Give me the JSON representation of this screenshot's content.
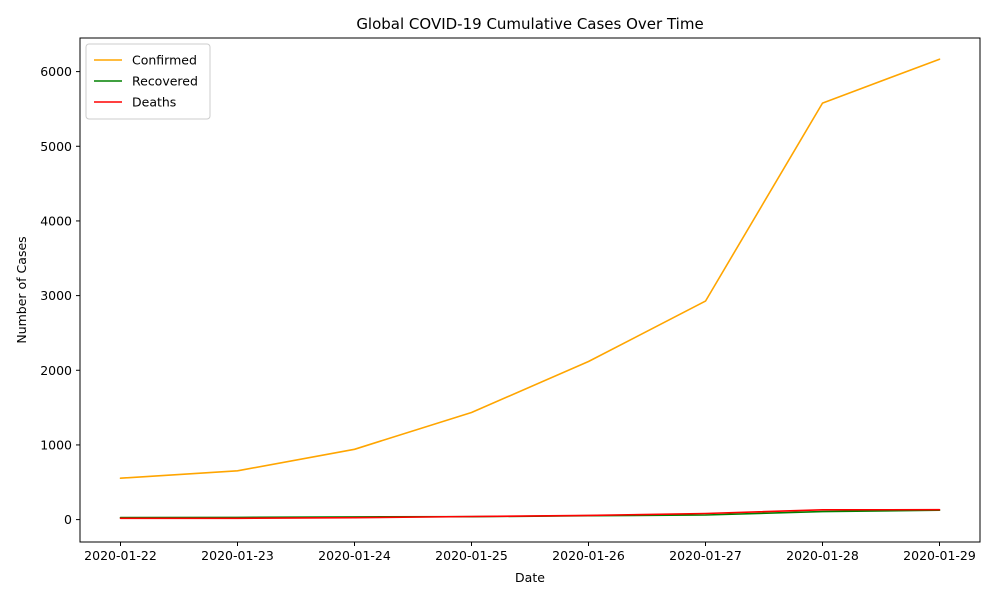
{
  "chart_data": {
    "type": "line",
    "title": "Global COVID-19 Cumulative Cases Over Time",
    "xlabel": "Date",
    "ylabel": "Number of Cases",
    "x": [
      "2020-01-22",
      "2020-01-23",
      "2020-01-24",
      "2020-01-25",
      "2020-01-26",
      "2020-01-27",
      "2020-01-28",
      "2020-01-29"
    ],
    "ylim": [
      -300,
      6450
    ],
    "yticks": [
      0,
      1000,
      2000,
      3000,
      4000,
      5000,
      6000
    ],
    "grid": false,
    "legend_position": "top-left",
    "series": [
      {
        "name": "Confirmed",
        "color": "#ffa500",
        "values": [
          555,
          654,
          941,
          1434,
          2118,
          2927,
          5578,
          6166
        ]
      },
      {
        "name": "Recovered",
        "color": "#008000",
        "values": [
          28,
          30,
          36,
          39,
          52,
          61,
          107,
          126
        ]
      },
      {
        "name": "Deaths",
        "color": "#ff0000",
        "values": [
          17,
          18,
          26,
          42,
          56,
          82,
          131,
          133
        ]
      }
    ]
  }
}
